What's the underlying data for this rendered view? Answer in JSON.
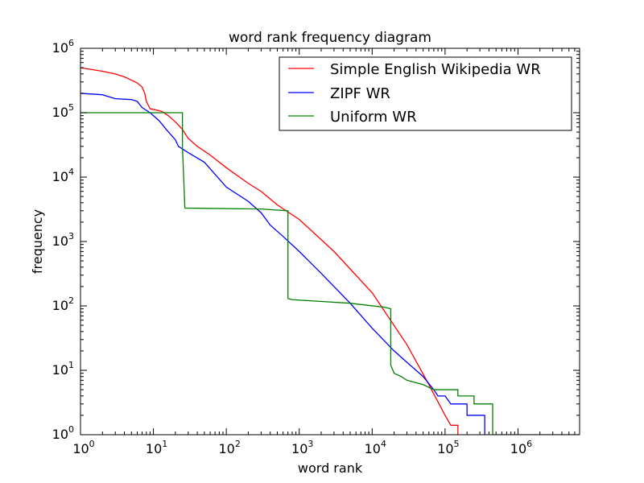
{
  "chart_data": {
    "type": "line",
    "title": "word rank frequency diagram",
    "xlabel": "word rank",
    "ylabel": "frequency",
    "xscale": "log",
    "yscale": "log",
    "xlim": [
      1,
      7000000
    ],
    "ylim": [
      1,
      1000000
    ],
    "x_ticks": [
      {
        "value": 1,
        "base": "10",
        "exp": "0"
      },
      {
        "value": 10,
        "base": "10",
        "exp": "1"
      },
      {
        "value": 100,
        "base": "10",
        "exp": "2"
      },
      {
        "value": 1000,
        "base": "10",
        "exp": "3"
      },
      {
        "value": 10000,
        "base": "10",
        "exp": "4"
      },
      {
        "value": 100000,
        "base": "10",
        "exp": "5"
      },
      {
        "value": 1000000,
        "base": "10",
        "exp": "6"
      }
    ],
    "y_ticks": [
      {
        "value": 1,
        "base": "10",
        "exp": "0"
      },
      {
        "value": 10,
        "base": "10",
        "exp": "1"
      },
      {
        "value": 100,
        "base": "10",
        "exp": "2"
      },
      {
        "value": 1000,
        "base": "10",
        "exp": "3"
      },
      {
        "value": 10000,
        "base": "10",
        "exp": "4"
      },
      {
        "value": 100000,
        "base": "10",
        "exp": "5"
      },
      {
        "value": 1000000,
        "base": "10",
        "exp": "6"
      }
    ],
    "grid": false,
    "legend_position": "top-right",
    "series": [
      {
        "name": "Simple English Wikipedia WR",
        "color": "#ff0000",
        "step": false,
        "points": [
          [
            1,
            500000
          ],
          [
            2,
            440000
          ],
          [
            3,
            400000
          ],
          [
            4,
            360000
          ],
          [
            5,
            320000
          ],
          [
            6,
            290000
          ],
          [
            7,
            250000
          ],
          [
            7.6,
            200000
          ],
          [
            8,
            150000
          ],
          [
            9,
            115000
          ],
          [
            11,
            110000
          ],
          [
            13,
            105000
          ],
          [
            16,
            90000
          ],
          [
            20,
            72000
          ],
          [
            25,
            55000
          ],
          [
            30,
            40000
          ],
          [
            40,
            30000
          ],
          [
            60,
            22000
          ],
          [
            100,
            14000
          ],
          [
            200,
            8000
          ],
          [
            300,
            6000
          ],
          [
            500,
            3700
          ],
          [
            1000,
            2200
          ],
          [
            3000,
            700
          ],
          [
            10000,
            160
          ],
          [
            30000,
            25
          ],
          [
            60000,
            6
          ],
          [
            100000,
            2
          ],
          [
            120000,
            1.4
          ],
          [
            150000,
            1.4
          ],
          [
            150000,
            1
          ]
        ]
      },
      {
        "name": "ZIPF WR",
        "color": "#0000ff",
        "step": false,
        "points": [
          [
            1,
            200000
          ],
          [
            2,
            190000
          ],
          [
            3,
            165000
          ],
          [
            5,
            160000
          ],
          [
            6,
            150000
          ],
          [
            7,
            120000
          ],
          [
            9,
            100000
          ],
          [
            12,
            75000
          ],
          [
            15,
            55000
          ],
          [
            20,
            38000
          ],
          [
            22,
            30000
          ],
          [
            30,
            24000
          ],
          [
            50,
            17000
          ],
          [
            100,
            7000
          ],
          [
            200,
            4200
          ],
          [
            300,
            2800
          ],
          [
            400,
            1800
          ],
          [
            600,
            1200
          ],
          [
            1000,
            700
          ],
          [
            2000,
            320
          ],
          [
            3000,
            200
          ],
          [
            5000,
            110
          ],
          [
            10000,
            45
          ],
          [
            20000,
            20
          ],
          [
            50000,
            8
          ],
          [
            70000,
            5
          ],
          [
            80000,
            4
          ],
          [
            100000,
            4
          ],
          [
            120000,
            3
          ],
          [
            200000,
            3
          ],
          [
            200000,
            2
          ],
          [
            350000,
            2
          ],
          [
            350000,
            1
          ]
        ]
      },
      {
        "name": "Uniform WR",
        "color": "#008000",
        "step": true,
        "points": [
          [
            1,
            100000
          ],
          [
            25,
            100000
          ],
          [
            25,
            30000
          ],
          [
            27,
            3300
          ],
          [
            300,
            3200
          ],
          [
            700,
            3000
          ],
          [
            700,
            130
          ],
          [
            800,
            125
          ],
          [
            5000,
            110
          ],
          [
            15000,
            95
          ],
          [
            18000,
            90
          ],
          [
            18000,
            12
          ],
          [
            20000,
            9
          ],
          [
            25000,
            8
          ],
          [
            30000,
            7
          ],
          [
            50000,
            6
          ],
          [
            70000,
            5
          ],
          [
            150000,
            5
          ],
          [
            150000,
            4
          ],
          [
            250000,
            4
          ],
          [
            250000,
            3
          ],
          [
            450000,
            3
          ],
          [
            450000,
            1
          ],
          [
            7000000,
            1
          ]
        ]
      }
    ]
  }
}
